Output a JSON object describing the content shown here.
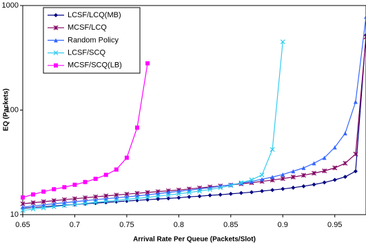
{
  "chart_data": {
    "type": "line",
    "x_label": "Arrival Rate Per Queue (Packets/Slot)",
    "y_label": "EQ (Packets)",
    "x": [
      0.65,
      0.66,
      0.67,
      0.68,
      0.69,
      0.7,
      0.71,
      0.72,
      0.73,
      0.74,
      0.75,
      0.76,
      0.77,
      0.78,
      0.79,
      0.8,
      0.81,
      0.82,
      0.83,
      0.84,
      0.85,
      0.86,
      0.87,
      0.88,
      0.89,
      0.9,
      0.91,
      0.92,
      0.93,
      0.94,
      0.95,
      0.96,
      0.97,
      0.98
    ],
    "series": [
      {
        "name": "LCSF/LCQ(MB)",
        "color": "#000080",
        "marker": "diamond",
        "values": [
          11.5,
          11.7,
          11.9,
          12.1,
          12.3,
          12.5,
          12.7,
          12.9,
          13.1,
          13.3,
          13.5,
          13.7,
          13.9,
          14.1,
          14.3,
          14.5,
          14.8,
          15.0,
          15.3,
          15.5,
          15.8,
          16.1,
          16.4,
          16.8,
          17.2,
          17.6,
          18.1,
          18.7,
          19.4,
          20.3,
          21.5,
          23,
          26,
          520
        ]
      },
      {
        "name": "MCSF/LCQ",
        "color": "#800060",
        "marker": "star",
        "values": [
          12.7,
          13.0,
          13.3,
          13.6,
          13.9,
          14.2,
          14.5,
          14.8,
          15.1,
          15.4,
          15.7,
          16.0,
          16.3,
          16.6,
          16.9,
          17.2,
          17.6,
          18.0,
          18.4,
          18.8,
          19.2,
          19.7,
          20.2,
          20.8,
          21.4,
          22.1,
          22.9,
          23.8,
          24.9,
          26.2,
          28,
          31,
          38,
          500
        ]
      },
      {
        "name": "Random Policy",
        "color": "#3366ff",
        "marker": "triangle",
        "values": [
          11.8,
          12.1,
          12.4,
          12.7,
          13.0,
          13.3,
          13.6,
          13.9,
          14.2,
          14.5,
          14.8,
          15.1,
          15.5,
          15.9,
          16.3,
          16.7,
          17.1,
          17.6,
          18.1,
          18.7,
          19.3,
          20,
          20.8,
          21.8,
          22.9,
          24.2,
          26,
          28,
          31,
          35,
          44,
          60,
          120,
          780
        ]
      },
      {
        "name": "LCSF/SCQ",
        "color": "#33ccee",
        "marker": "x",
        "values": [
          11.0,
          11.3,
          11.6,
          11.9,
          12.2,
          12.5,
          12.8,
          13.1,
          13.4,
          13.7,
          14.0,
          14.3,
          14.6,
          15.0,
          15.4,
          15.8,
          16.3,
          16.8,
          17.4,
          18.1,
          19.0,
          20.2,
          21.5,
          24,
          42,
          450,
          null,
          null,
          null,
          null,
          null,
          null,
          null,
          null
        ]
      },
      {
        "name": "MCSF/SCQ(LB)",
        "color": "#ff00ff",
        "marker": "square",
        "values": [
          14.6,
          15.6,
          16.6,
          17.5,
          18.3,
          19.3,
          20.5,
          22,
          24,
          27,
          35,
          68,
          280,
          null,
          null,
          null,
          null,
          null,
          null,
          null,
          null,
          null,
          null,
          null,
          null,
          null,
          null,
          null,
          null,
          null,
          null,
          null,
          null,
          null
        ]
      }
    ],
    "xlim": [
      0.65,
      0.98
    ],
    "xticks": [
      0.65,
      0.7,
      0.75,
      0.8,
      0.85,
      0.9,
      0.95
    ],
    "ylim": [
      10,
      1000
    ],
    "yticks": [
      10,
      100,
      1000
    ],
    "log_y": true,
    "legend": "upper-left"
  }
}
